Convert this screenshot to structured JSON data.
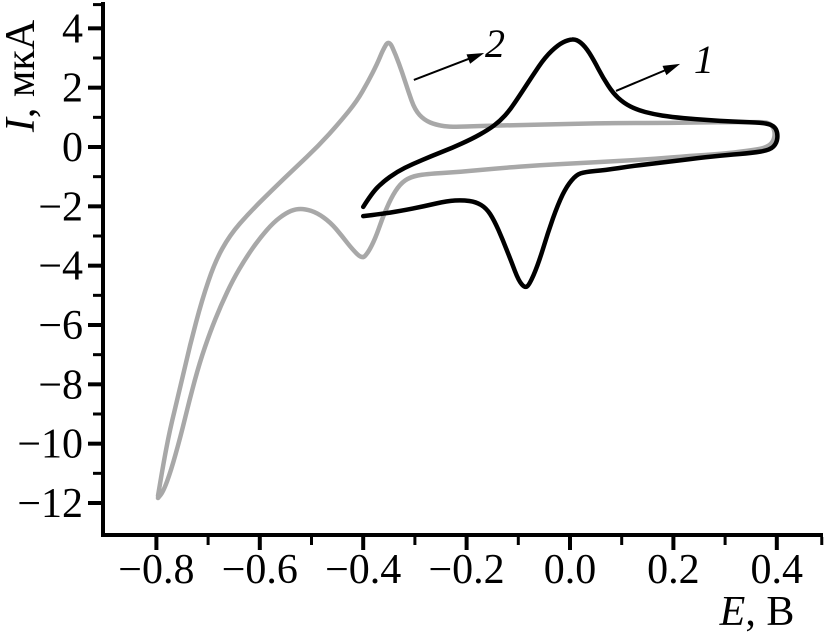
{
  "figure": {
    "background": "#ffffff",
    "axis_color": "#000000"
  },
  "chart_data": {
    "type": "line",
    "description": "Cyclic voltammograms, two curves",
    "title": "",
    "xlabel": {
      "italic": "E",
      "rest": ", В"
    },
    "ylabel": {
      "italic": "I",
      "rest": ", мкА"
    },
    "x_axis": {
      "range_volts": [
        -0.909,
        0.489
      ],
      "major_ticks": [
        {
          "v": -0.8,
          "label": "−0.8"
        },
        {
          "v": -0.6,
          "label": "−0.6"
        },
        {
          "v": -0.4,
          "label": "−0.4"
        },
        {
          "v": -0.2,
          "label": "−0.2"
        },
        {
          "v": 0.0,
          "label": "0.0"
        },
        {
          "v": 0.2,
          "label": "0.2"
        },
        {
          "v": 0.4,
          "label": "0.4"
        }
      ],
      "minor_ticks": [
        -0.7,
        -0.5,
        -0.3,
        -0.1,
        0.1,
        0.3,
        0.487
      ]
    },
    "y_axis": {
      "range_uA": [
        -13.1,
        4.85
      ],
      "major_ticks": [
        {
          "v": 4,
          "label": "4"
        },
        {
          "v": 2,
          "label": "2"
        },
        {
          "v": 0,
          "label": "0"
        },
        {
          "v": -2,
          "label": "−2"
        },
        {
          "v": -4,
          "label": "−4"
        },
        {
          "v": -6,
          "label": "−6"
        },
        {
          "v": -8,
          "label": "−8"
        },
        {
          "v": -10,
          "label": "−10"
        },
        {
          "v": -12,
          "label": "−12"
        }
      ],
      "minor_ticks": [
        3,
        1,
        -1,
        -3,
        -5,
        -7,
        -9,
        -11,
        4.8
      ]
    },
    "grid": false,
    "legend": "inline numbered labels with arrows",
    "series": [
      {
        "name": "2",
        "color": "#a8a8a8",
        "stroke_width": 4.5,
        "anodic_peak": {
          "E": -0.35,
          "I": 3.6
        },
        "cathodic_peak": {
          "E": -0.4,
          "I": -3.8
        },
        "points": [
          [
            -0.797,
            -11.76
          ],
          [
            -0.787,
            -10.72
          ],
          [
            -0.774,
            -9.54
          ],
          [
            -0.756,
            -8.26
          ],
          [
            -0.735,
            -6.67
          ],
          [
            -0.712,
            -5.16
          ],
          [
            -0.687,
            -3.88
          ],
          [
            -0.658,
            -2.97
          ],
          [
            -0.619,
            -2.19
          ],
          [
            -0.576,
            -1.45
          ],
          [
            -0.532,
            -0.71
          ],
          [
            -0.487,
            0.03
          ],
          [
            -0.445,
            0.84
          ],
          [
            -0.412,
            1.55
          ],
          [
            -0.391,
            2.19
          ],
          [
            -0.373,
            2.8
          ],
          [
            -0.362,
            3.27
          ],
          [
            -0.35,
            3.61
          ],
          [
            -0.337,
            3.1
          ],
          [
            -0.325,
            2.53
          ],
          [
            -0.313,
            1.89
          ],
          [
            -0.3,
            1.25
          ],
          [
            -0.282,
            0.91
          ],
          [
            -0.259,
            0.74
          ],
          [
            -0.228,
            0.67
          ],
          [
            -0.174,
            0.71
          ],
          [
            -0.097,
            0.74
          ],
          [
            0.0,
            0.78
          ],
          [
            0.097,
            0.81
          ],
          [
            0.193,
            0.81
          ],
          [
            0.29,
            0.84
          ],
          [
            0.352,
            0.84
          ],
          [
            0.379,
            0.84
          ],
          [
            0.391,
            0.74
          ],
          [
            0.397,
            0.47
          ],
          [
            0.393,
            0.17
          ],
          [
            0.379,
            -0.03
          ],
          [
            0.344,
            -0.13
          ],
          [
            0.29,
            -0.24
          ],
          [
            0.232,
            -0.3
          ],
          [
            0.164,
            -0.4
          ],
          [
            0.097,
            -0.47
          ],
          [
            0.019,
            -0.54
          ],
          [
            -0.058,
            -0.61
          ],
          [
            -0.135,
            -0.71
          ],
          [
            -0.213,
            -0.84
          ],
          [
            -0.28,
            -0.91
          ],
          [
            -0.309,
            -1.01
          ],
          [
            -0.329,
            -1.25
          ],
          [
            -0.346,
            -1.72
          ],
          [
            -0.362,
            -2.36
          ],
          [
            -0.377,
            -3.1
          ],
          [
            -0.391,
            -3.57
          ],
          [
            -0.402,
            -3.77
          ],
          [
            -0.42,
            -3.47
          ],
          [
            -0.441,
            -3.0
          ],
          [
            -0.464,
            -2.53
          ],
          [
            -0.489,
            -2.22
          ],
          [
            -0.512,
            -2.09
          ],
          [
            -0.53,
            -2.09
          ],
          [
            -0.549,
            -2.22
          ],
          [
            -0.573,
            -2.53
          ],
          [
            -0.6,
            -3.07
          ],
          [
            -0.627,
            -3.74
          ],
          [
            -0.652,
            -4.48
          ],
          [
            -0.675,
            -5.33
          ],
          [
            -0.696,
            -6.23
          ],
          [
            -0.716,
            -7.25
          ],
          [
            -0.735,
            -8.46
          ],
          [
            -0.754,
            -9.81
          ],
          [
            -0.772,
            -10.92
          ],
          [
            -0.787,
            -11.63
          ],
          [
            -0.797,
            -11.83
          ]
        ]
      },
      {
        "name": "1",
        "color": "#000000",
        "stroke_width": 4.5,
        "anodic_peak": {
          "E": 0.01,
          "I": 3.65
        },
        "cathodic_peak": {
          "E": -0.09,
          "I": -4.75
        },
        "points": [
          [
            -0.4,
            -2.02
          ],
          [
            -0.383,
            -1.55
          ],
          [
            -0.362,
            -1.18
          ],
          [
            -0.335,
            -0.84
          ],
          [
            -0.304,
            -0.57
          ],
          [
            -0.267,
            -0.3
          ],
          [
            -0.228,
            -0.03
          ],
          [
            -0.19,
            0.27
          ],
          [
            -0.159,
            0.57
          ],
          [
            -0.135,
            0.88
          ],
          [
            -0.116,
            1.25
          ],
          [
            -0.097,
            1.75
          ],
          [
            -0.073,
            2.39
          ],
          [
            -0.048,
            3.03
          ],
          [
            -0.023,
            3.44
          ],
          [
            -0.004,
            3.61
          ],
          [
            0.012,
            3.64
          ],
          [
            0.029,
            3.4
          ],
          [
            0.046,
            2.93
          ],
          [
            0.064,
            2.33
          ],
          [
            0.083,
            1.82
          ],
          [
            0.104,
            1.48
          ],
          [
            0.13,
            1.25
          ],
          [
            0.161,
            1.11
          ],
          [
            0.197,
            1.01
          ],
          [
            0.242,
            0.94
          ],
          [
            0.29,
            0.88
          ],
          [
            0.339,
            0.84
          ],
          [
            0.377,
            0.81
          ],
          [
            0.395,
            0.71
          ],
          [
            0.402,
            0.47
          ],
          [
            0.4,
            0.13
          ],
          [
            0.387,
            -0.1
          ],
          [
            0.352,
            -0.2
          ],
          [
            0.304,
            -0.27
          ],
          [
            0.248,
            -0.37
          ],
          [
            0.184,
            -0.51
          ],
          [
            0.12,
            -0.64
          ],
          [
            0.068,
            -0.78
          ],
          [
            0.029,
            -0.84
          ],
          [
            0.012,
            -0.94
          ],
          [
            -0.006,
            -1.31
          ],
          [
            -0.023,
            -1.92
          ],
          [
            -0.043,
            -2.9
          ],
          [
            -0.062,
            -3.98
          ],
          [
            -0.079,
            -4.65
          ],
          [
            -0.087,
            -4.75
          ],
          [
            -0.099,
            -4.52
          ],
          [
            -0.114,
            -3.84
          ],
          [
            -0.13,
            -3.13
          ],
          [
            -0.147,
            -2.46
          ],
          [
            -0.162,
            -2.06
          ],
          [
            -0.182,
            -1.85
          ],
          [
            -0.207,
            -1.79
          ],
          [
            -0.238,
            -1.82
          ],
          [
            -0.28,
            -1.99
          ],
          [
            -0.329,
            -2.16
          ],
          [
            -0.367,
            -2.26
          ],
          [
            -0.4,
            -2.33
          ]
        ]
      }
    ],
    "annotations": [
      {
        "label": "2",
        "label_pos": [
          -0.145,
          3.47
        ],
        "arrow_from": [
          -0.302,
          2.26
        ],
        "arrow_to": [
          -0.166,
          3.17
        ]
      },
      {
        "label": "1",
        "label_pos": [
          0.259,
          2.93
        ],
        "arrow_from": [
          0.089,
          1.89
        ],
        "arrow_to": [
          0.213,
          2.8
        ]
      }
    ]
  }
}
